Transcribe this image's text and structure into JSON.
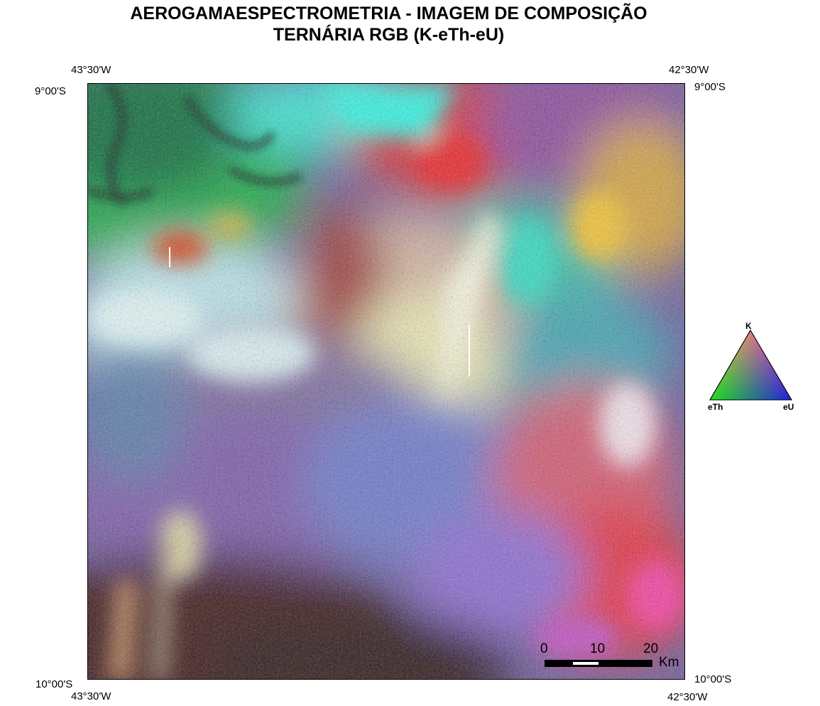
{
  "title_line1": "AEROGAMAESPECTROMETRIA - IMAGEM DE COMPOSIÇÃO",
  "title_line2": "TERNÁRIA RGB (K-eTh-eU)",
  "coords": {
    "top_left_lon": "43°30'W",
    "top_right_lon": "42°30'W",
    "left_top_lat": "9°00'S",
    "right_top_lat": "9°00'S",
    "left_bottom_lat": "10°00'S",
    "right_bottom_lat": "10°00'S",
    "bottom_left_lon": "43°30'W",
    "bottom_right_lon": "42°30'W"
  },
  "scale": {
    "ticks": [
      "0",
      "10",
      "20"
    ],
    "unit": "Km"
  },
  "legend": {
    "top": "K",
    "left": "eTh",
    "right": "eU"
  },
  "colors": {
    "K": "#ff0000",
    "eTh": "#00ff00",
    "eU": "#0000ff"
  }
}
